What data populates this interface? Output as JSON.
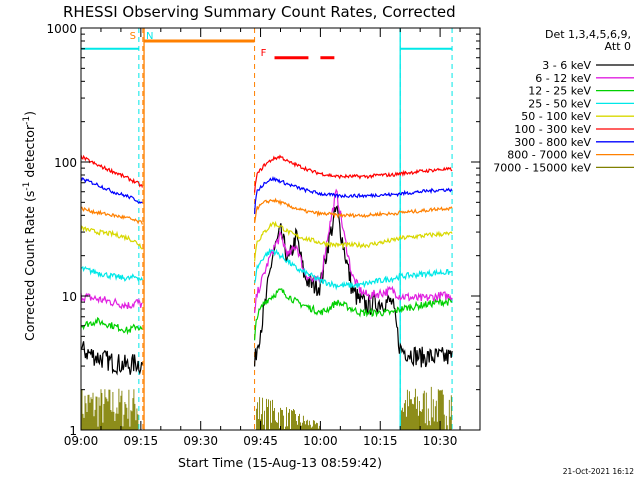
{
  "chart_data": {
    "type": "line",
    "title": "RHESSI Observing Summary Count Rates, Corrected",
    "xlabel": "Start Time (15-Aug-13 08:59:42)",
    "ylabel": "Corrected Count Rate (s",
    "ylabel_sup1": "-1",
    "ylabel_mid": " detector",
    "ylabel_sup2": "-1",
    "ylabel_end": ")",
    "y_scale": "log",
    "ylim": [
      1,
      1000
    ],
    "xlim_minutes": [
      0,
      100
    ],
    "x_ticks": [
      {
        "m": 0,
        "label": "09:00"
      },
      {
        "m": 15,
        "label": "09:15"
      },
      {
        "m": 30,
        "label": "09:30"
      },
      {
        "m": 45,
        "label": "09:45"
      },
      {
        "m": 60,
        "label": "10:00"
      },
      {
        "m": 75,
        "label": "10:15"
      },
      {
        "m": 90,
        "label": "10:30"
      }
    ],
    "y_ticks": [
      {
        "v": 1,
        "label": "1"
      },
      {
        "v": 10,
        "label": "10"
      },
      {
        "v": 100,
        "label": "100"
      },
      {
        "v": 1000,
        "label": "1000"
      }
    ],
    "legend_header": [
      "Det 1,3,4,5,6,9,",
      "Att 0"
    ],
    "legend_placement": "right",
    "series": [
      {
        "name": "3 - 6 keV",
        "color": "#000000",
        "noise": 0.18,
        "points": [
          [
            0,
            4
          ],
          [
            4,
            3.5
          ],
          [
            8,
            3.2
          ],
          [
            12,
            3
          ],
          [
            14,
            3.2
          ],
          [
            15.5,
            3
          ],
          [
            43.5,
            3
          ],
          [
            44,
            4
          ],
          [
            46,
            8
          ],
          [
            48,
            20
          ],
          [
            50,
            30
          ],
          [
            52,
            18
          ],
          [
            54,
            28
          ],
          [
            56,
            14
          ],
          [
            58,
            12
          ],
          [
            60,
            12
          ],
          [
            62,
            25
          ],
          [
            64,
            45
          ],
          [
            66,
            22
          ],
          [
            68,
            11
          ],
          [
            70,
            9
          ],
          [
            72,
            8.5
          ],
          [
            75,
            9
          ],
          [
            78,
            9
          ],
          [
            80,
            4
          ],
          [
            85,
            3.5
          ],
          [
            90,
            3.5
          ],
          [
            93,
            3.5
          ]
        ]
      },
      {
        "name": "6 - 12 keV",
        "color": "#e020e0",
        "noise": 0.08,
        "points": [
          [
            0,
            10
          ],
          [
            4,
            9.5
          ],
          [
            8,
            9
          ],
          [
            12,
            8.5
          ],
          [
            14,
            9
          ],
          [
            15.5,
            8.5
          ],
          [
            43.5,
            7
          ],
          [
            44,
            10
          ],
          [
            46,
            15
          ],
          [
            48,
            22
          ],
          [
            50,
            28
          ],
          [
            52,
            20
          ],
          [
            54,
            24
          ],
          [
            56,
            15
          ],
          [
            58,
            13
          ],
          [
            60,
            13
          ],
          [
            62,
            30
          ],
          [
            64,
            60
          ],
          [
            66,
            28
          ],
          [
            68,
            14
          ],
          [
            70,
            11
          ],
          [
            72,
            10
          ],
          [
            75,
            10.5
          ],
          [
            78,
            11
          ],
          [
            80,
            10
          ],
          [
            85,
            9.5
          ],
          [
            90,
            10
          ],
          [
            93,
            10
          ]
        ]
      },
      {
        "name": "12 - 25 keV",
        "color": "#00d000",
        "noise": 0.06,
        "points": [
          [
            0,
            6
          ],
          [
            4,
            6.5
          ],
          [
            8,
            6
          ],
          [
            12,
            5.5
          ],
          [
            14,
            6
          ],
          [
            15.5,
            5.5
          ],
          [
            43.5,
            4.5
          ],
          [
            44,
            7
          ],
          [
            46,
            9
          ],
          [
            48,
            10
          ],
          [
            50,
            11
          ],
          [
            52,
            10
          ],
          [
            54,
            9
          ],
          [
            56,
            8.5
          ],
          [
            58,
            8
          ],
          [
            60,
            7.5
          ],
          [
            62,
            8
          ],
          [
            64,
            9
          ],
          [
            66,
            8.5
          ],
          [
            68,
            8
          ],
          [
            70,
            7.5
          ],
          [
            72,
            7.5
          ],
          [
            75,
            7.5
          ],
          [
            78,
            7.5
          ],
          [
            80,
            8
          ],
          [
            85,
            8.5
          ],
          [
            90,
            9
          ],
          [
            93,
            9
          ]
        ]
      },
      {
        "name": "25 - 50 keV",
        "color": "#00e8e8",
        "noise": 0.05,
        "points": [
          [
            0,
            16
          ],
          [
            4,
            15
          ],
          [
            8,
            14
          ],
          [
            12,
            13.5
          ],
          [
            14,
            14
          ],
          [
            15.5,
            13
          ],
          [
            43.5,
            12
          ],
          [
            44,
            16
          ],
          [
            46,
            20
          ],
          [
            48,
            22
          ],
          [
            50,
            20
          ],
          [
            52,
            18
          ],
          [
            54,
            16
          ],
          [
            56,
            15
          ],
          [
            58,
            14
          ],
          [
            60,
            13
          ],
          [
            62,
            12.5
          ],
          [
            64,
            12
          ],
          [
            66,
            12
          ],
          [
            68,
            12
          ],
          [
            70,
            12
          ],
          [
            72,
            12.5
          ],
          [
            75,
            13
          ],
          [
            78,
            13.5
          ],
          [
            80,
            14
          ],
          [
            85,
            14.5
          ],
          [
            90,
            15
          ],
          [
            93,
            15
          ]
        ]
      },
      {
        "name": "50 - 100 keV",
        "color": "#d8d800",
        "noise": 0.04,
        "points": [
          [
            0,
            32
          ],
          [
            4,
            30
          ],
          [
            8,
            29
          ],
          [
            12,
            27
          ],
          [
            14,
            25
          ],
          [
            15.5,
            23
          ],
          [
            43.5,
            18
          ],
          [
            44,
            25
          ],
          [
            46,
            30
          ],
          [
            48,
            35
          ],
          [
            50,
            33
          ],
          [
            52,
            30
          ],
          [
            54,
            28
          ],
          [
            56,
            27
          ],
          [
            58,
            26
          ],
          [
            60,
            25
          ],
          [
            62,
            24.5
          ],
          [
            64,
            24
          ],
          [
            66,
            24
          ],
          [
            68,
            24
          ],
          [
            70,
            24
          ],
          [
            72,
            24
          ],
          [
            75,
            25
          ],
          [
            78,
            26
          ],
          [
            80,
            27
          ],
          [
            85,
            28
          ],
          [
            90,
            29
          ],
          [
            93,
            29
          ]
        ]
      },
      {
        "name": "100 - 300 keV",
        "color": "#ff0000",
        "noise": 0.03,
        "points": [
          [
            0,
            110
          ],
          [
            4,
            95
          ],
          [
            8,
            85
          ],
          [
            12,
            75
          ],
          [
            14,
            70
          ],
          [
            15.5,
            65
          ],
          [
            43.5,
            58
          ],
          [
            44,
            80
          ],
          [
            46,
            95
          ],
          [
            48,
            105
          ],
          [
            50,
            110
          ],
          [
            52,
            100
          ],
          [
            54,
            95
          ],
          [
            56,
            90
          ],
          [
            58,
            85
          ],
          [
            60,
            82
          ],
          [
            62,
            80
          ],
          [
            64,
            78
          ],
          [
            66,
            78
          ],
          [
            68,
            78
          ],
          [
            70,
            78
          ],
          [
            72,
            78
          ],
          [
            75,
            80
          ],
          [
            78,
            80
          ],
          [
            80,
            82
          ],
          [
            85,
            85
          ],
          [
            90,
            88
          ],
          [
            93,
            88
          ]
        ]
      },
      {
        "name": "300 - 800 keV",
        "color": "#0000ff",
        "noise": 0.03,
        "points": [
          [
            0,
            75
          ],
          [
            4,
            68
          ],
          [
            8,
            60
          ],
          [
            12,
            55
          ],
          [
            14,
            52
          ],
          [
            15.5,
            48
          ],
          [
            43.5,
            42
          ],
          [
            44,
            60
          ],
          [
            46,
            70
          ],
          [
            48,
            75
          ],
          [
            50,
            72
          ],
          [
            52,
            68
          ],
          [
            54,
            65
          ],
          [
            56,
            62
          ],
          [
            58,
            60
          ],
          [
            60,
            58
          ],
          [
            62,
            57
          ],
          [
            64,
            56
          ],
          [
            66,
            56
          ],
          [
            68,
            56
          ],
          [
            70,
            56
          ],
          [
            72,
            56
          ],
          [
            75,
            57
          ],
          [
            78,
            57
          ],
          [
            80,
            58
          ],
          [
            85,
            60
          ],
          [
            90,
            62
          ],
          [
            93,
            62
          ]
        ]
      },
      {
        "name": "800 - 7000 keV",
        "color": "#ff8000",
        "noise": 0.03,
        "points": [
          [
            0,
            45
          ],
          [
            4,
            42
          ],
          [
            8,
            40
          ],
          [
            12,
            38
          ],
          [
            14,
            36
          ],
          [
            15.5,
            35
          ],
          [
            43.5,
            35
          ],
          [
            44,
            45
          ],
          [
            46,
            50
          ],
          [
            48,
            52
          ],
          [
            50,
            50
          ],
          [
            52,
            47
          ],
          [
            54,
            45
          ],
          [
            56,
            43
          ],
          [
            58,
            42
          ],
          [
            60,
            41
          ],
          [
            62,
            41
          ],
          [
            64,
            40
          ],
          [
            66,
            40
          ],
          [
            68,
            40
          ],
          [
            70,
            40
          ],
          [
            72,
            40
          ],
          [
            75,
            41
          ],
          [
            78,
            41
          ],
          [
            80,
            42
          ],
          [
            85,
            43
          ],
          [
            90,
            45
          ],
          [
            93,
            45
          ]
        ]
      },
      {
        "name": "7000 - 15000 keV",
        "color": "#808000",
        "noise": 0.0,
        "points": []
      }
    ],
    "night_flag": {
      "color": "#00e8e8",
      "level": 700,
      "segments": [
        [
          0,
          14.5
        ],
        [
          80,
          93
        ]
      ]
    },
    "saa_markers": [
      {
        "label": "S",
        "m": 14.5,
        "color": "#ff8000"
      },
      {
        "label": "N",
        "m": 15.8,
        "color": "#00e8e8"
      },
      {
        "label": "F",
        "m": 43.5,
        "color": "#ff0000"
      }
    ],
    "saa_band": {
      "color": "#ff8000",
      "level": 800,
      "from": 15.8,
      "to": 43.5
    },
    "flare_flag": {
      "color": "#ff0000",
      "level": 600,
      "segments": [
        [
          48.5,
          57
        ],
        [
          60,
          63.5
        ]
      ]
    },
    "dashed_verticals": [
      {
        "m": 14.5,
        "color": "#00e8e8"
      },
      {
        "m": 15.5,
        "color": "#ff8000"
      },
      {
        "m": 43.5,
        "color": "#ff8000"
      },
      {
        "m": 80,
        "color": "#00e8e8"
      },
      {
        "m": 93,
        "color": "#00e8e8"
      }
    ],
    "solid_verticals": [
      {
        "m": 15.8,
        "color": "#ff8000"
      },
      {
        "m": 80,
        "color": "#00e8e8"
      }
    ]
  },
  "footer": {
    "timestamp": "21-Oct-2021 16:12"
  }
}
